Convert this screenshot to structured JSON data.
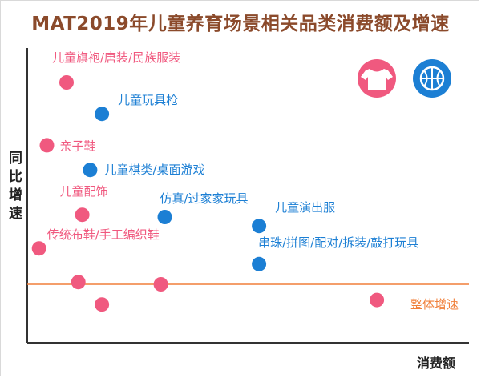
{
  "chart_data": {
    "type": "scatter",
    "title": "MAT2019年儿童养育场景相关品类消费额及增速",
    "xlabel": "消费额",
    "ylabel": "同比增速",
    "reference_line": {
      "label": "整体增速",
      "y": 0
    },
    "legend_icons": [
      {
        "name": "tshirt-icon",
        "color": "#f0597f"
      },
      {
        "name": "basketball-icon",
        "color": "#1c7fd4"
      }
    ],
    "colors": {
      "pink": "#f0597f",
      "blue": "#1c7fd4",
      "reference": "#f07f3a",
      "title": "#8b4a2b"
    },
    "points": [
      {
        "label": "儿童旗袍/唐装/民族服装",
        "x": 0.1,
        "y": 0.9,
        "group": "pink"
      },
      {
        "label": "儿童玩具枪",
        "x": 0.19,
        "y": 0.76,
        "group": "blue"
      },
      {
        "label": "亲子鞋",
        "x": 0.05,
        "y": 0.62,
        "group": "pink"
      },
      {
        "label": "儿童棋类/桌面游戏",
        "x": 0.16,
        "y": 0.51,
        "group": "blue"
      },
      {
        "label": "儿童配饰",
        "x": 0.14,
        "y": 0.31,
        "group": "pink"
      },
      {
        "label": "仿真/过家家玩具",
        "x": 0.35,
        "y": 0.3,
        "group": "blue"
      },
      {
        "label": "儿童演出服",
        "x": 0.59,
        "y": 0.26,
        "group": "blue"
      },
      {
        "label": "传统布鞋/手工编织鞋",
        "x": 0.03,
        "y": 0.16,
        "group": "pink"
      },
      {
        "label": "串珠/拼图/配对/拆装/敲打玩具",
        "x": 0.59,
        "y": 0.09,
        "group": "blue"
      },
      {
        "label": "",
        "x": 0.13,
        "y": 0.01,
        "group": "pink"
      },
      {
        "label": "",
        "x": 0.34,
        "y": 0.0,
        "group": "pink"
      },
      {
        "label": "",
        "x": 0.19,
        "y": -0.09,
        "group": "pink"
      },
      {
        "label": "",
        "x": 0.89,
        "y": -0.07,
        "group": "pink"
      }
    ]
  }
}
